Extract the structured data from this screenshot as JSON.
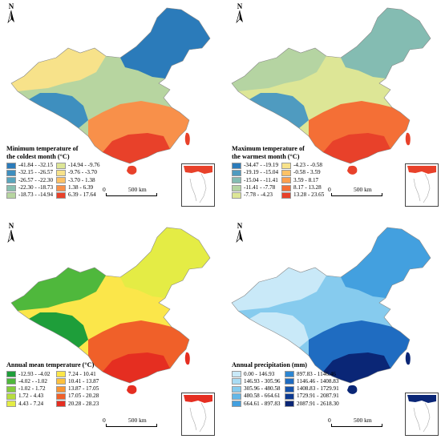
{
  "north_label": "N",
  "scale": {
    "zero": "0",
    "distance": "500 km"
  },
  "panels": [
    {
      "id": "min-temp",
      "title_line1": "Minimum temperature of",
      "title_line2": "the coldest month (°C)",
      "classes": [
        {
          "label": "-41.84 - -32.15",
          "color": "#2b7bba"
        },
        {
          "label": "-32.15 - -26.57",
          "color": "#3e8fbf"
        },
        {
          "label": "-26.57 - -22.30",
          "color": "#5aa5bd"
        },
        {
          "label": "-22.30 - -18.73",
          "color": "#88bfb0"
        },
        {
          "label": "-18.73 - -14.94",
          "color": "#b7d5a0"
        },
        {
          "label": "-14.94 - -9.76",
          "color": "#dde696"
        },
        {
          "label": "-9.76 - -3.70",
          "color": "#f7e28a"
        },
        {
          "label": "-3.70 - 1.38",
          "color": "#fdc266"
        },
        {
          "label": "1.38 - 6.39",
          "color": "#f8904a"
        },
        {
          "label": "6.39 - 17.64",
          "color": "#e8412a"
        }
      ]
    },
    {
      "id": "max-temp",
      "title_line1": "Maximum temperature of",
      "title_line2": "the warmest month (°C)",
      "classes": [
        {
          "label": "-34.47 - -19.19",
          "color": "#2b7bba"
        },
        {
          "label": "-19.19 - -15.04",
          "color": "#4f9bc0"
        },
        {
          "label": "-15.04 - -11.41",
          "color": "#84bcb2"
        },
        {
          "label": "-11.41 - -7.78",
          "color": "#b5d4a2"
        },
        {
          "label": "-7.78 - -4.23",
          "color": "#dde696"
        },
        {
          "label": "-4.23 - -0.58",
          "color": "#f7e28a"
        },
        {
          "label": "-0.58 - 3.59",
          "color": "#fdc266"
        },
        {
          "label": "3.59 - 8.17",
          "color": "#fca04f"
        },
        {
          "label": "8.17 - 13.28",
          "color": "#f46f36"
        },
        {
          "label": "13.28 - 23.65",
          "color": "#e8412a"
        }
      ]
    },
    {
      "id": "annual-mean-temp",
      "title_line1": "Annual mean temperature (°C)",
      "title_line2": "",
      "classes": [
        {
          "label": "-12.93 - -4.02",
          "color": "#1e9e3a"
        },
        {
          "label": "-4.02 - -1.02",
          "color": "#4fb83c"
        },
        {
          "label": "-1.02 - 1.72",
          "color": "#86cc3d"
        },
        {
          "label": "1.72 - 4.43",
          "color": "#b7dd3f"
        },
        {
          "label": "4.43 - 7.24",
          "color": "#e4ec45"
        },
        {
          "label": "7.24 - 10.41",
          "color": "#fbe64a"
        },
        {
          "label": "10.41 - 13.87",
          "color": "#fcc13e"
        },
        {
          "label": "13.87 - 17.05",
          "color": "#f89433"
        },
        {
          "label": "17.05 - 20.28",
          "color": "#f06029"
        },
        {
          "label": "20.28 - 28.23",
          "color": "#e52e21"
        }
      ]
    },
    {
      "id": "annual-precip",
      "title_line1": "Annual precipitation (mm)",
      "title_line2": "",
      "classes": [
        {
          "label": "0.00 - 146.93",
          "color": "#c9e9f8"
        },
        {
          "label": "146.93 - 305.96",
          "color": "#a9dcf4"
        },
        {
          "label": "305.96 - 480.58",
          "color": "#86cbee"
        },
        {
          "label": "480.58 - 664.61",
          "color": "#63b7e8"
        },
        {
          "label": "664.61 - 897.83",
          "color": "#43a0df"
        },
        {
          "label": "897.83 - 1146.46",
          "color": "#2d86d2"
        },
        {
          "label": "1146.46 - 1408.83",
          "color": "#1f6cc1"
        },
        {
          "label": "1408.83 - 1729.91",
          "color": "#1552ab"
        },
        {
          "label": "1729.91 - 2087.91",
          "color": "#0d3a92"
        },
        {
          "label": "2087.91 - 2618.30",
          "color": "#0a2676"
        }
      ]
    }
  ]
}
